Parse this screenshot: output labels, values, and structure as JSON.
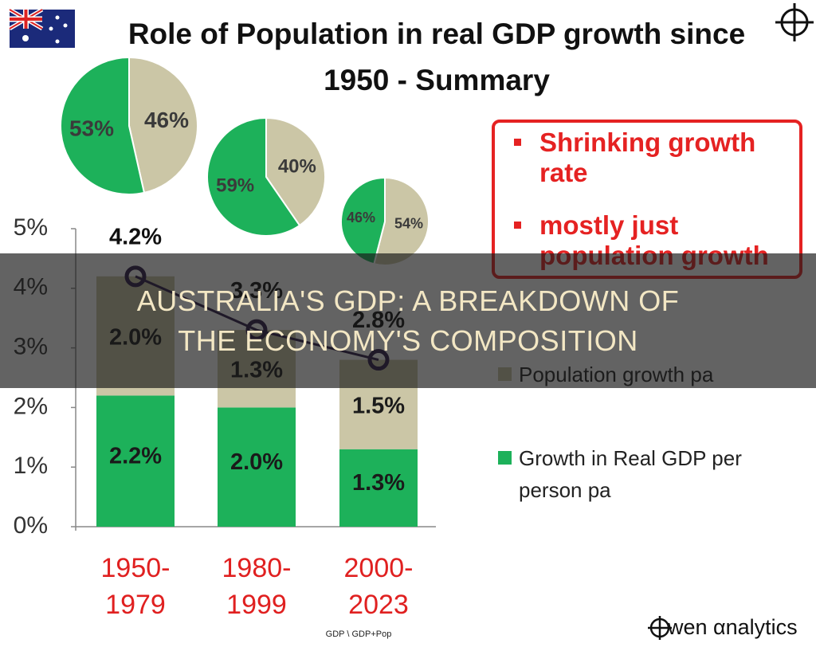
{
  "header": {
    "title": "Role of Population in real GDP growth since 1950 - Summary"
  },
  "callout": {
    "items": [
      "Shrinking growth rate",
      "mostly just population growth"
    ]
  },
  "banner": {
    "text": "AUSTRALIA'S GDP: A BREAKDOWN OF THE ECONOMY'S COMPOSITION"
  },
  "footer": {
    "note": "GDP \\ GDP+Pop",
    "logo": "wen αnalytics"
  },
  "chart_data": [
    {
      "type": "bar",
      "stacked": true,
      "categories": [
        "1950-\n1979",
        "1980-\n1999",
        "2000-\n2023"
      ],
      "series": [
        {
          "name": "Growth in Real GDP per person pa",
          "color": "#1db15a",
          "values": [
            2.2,
            2.0,
            1.3
          ],
          "value_labels": [
            "2.2%",
            "2.0%",
            "1.3%"
          ]
        },
        {
          "name": "Population growth pa",
          "color": "#cbc6a6",
          "values": [
            2.0,
            1.3,
            1.5
          ],
          "value_labels": [
            "2.0%",
            "1.3%",
            "1.5%"
          ]
        }
      ],
      "totals": {
        "color": "#2e1a47",
        "values": [
          4.2,
          3.3,
          2.8
        ],
        "value_labels": [
          "4.2%",
          "3.3%",
          "2.8%"
        ]
      },
      "ylim": [
        0,
        5
      ],
      "yticks": [
        {
          "value": 0,
          "label": "0%"
        },
        {
          "value": 1,
          "label": "1%"
        },
        {
          "value": 2,
          "label": "2%"
        },
        {
          "value": 3,
          "label": "3%"
        },
        {
          "value": 4,
          "label": "4%"
        },
        {
          "value": 5,
          "label": "5%"
        }
      ]
    },
    {
      "type": "pie",
      "values": [
        53,
        46
      ],
      "value_labels": [
        "53%",
        "46%"
      ],
      "colors": [
        "#1db15a",
        "#cbc6a6"
      ]
    },
    {
      "type": "pie",
      "values": [
        59,
        40
      ],
      "value_labels": [
        "59%",
        "40%"
      ],
      "colors": [
        "#1db15a",
        "#cbc6a6"
      ]
    },
    {
      "type": "pie",
      "values": [
        46,
        54
      ],
      "value_labels": [
        "46%",
        "54%"
      ],
      "colors": [
        "#1db15a",
        "#cbc6a6"
      ]
    }
  ]
}
